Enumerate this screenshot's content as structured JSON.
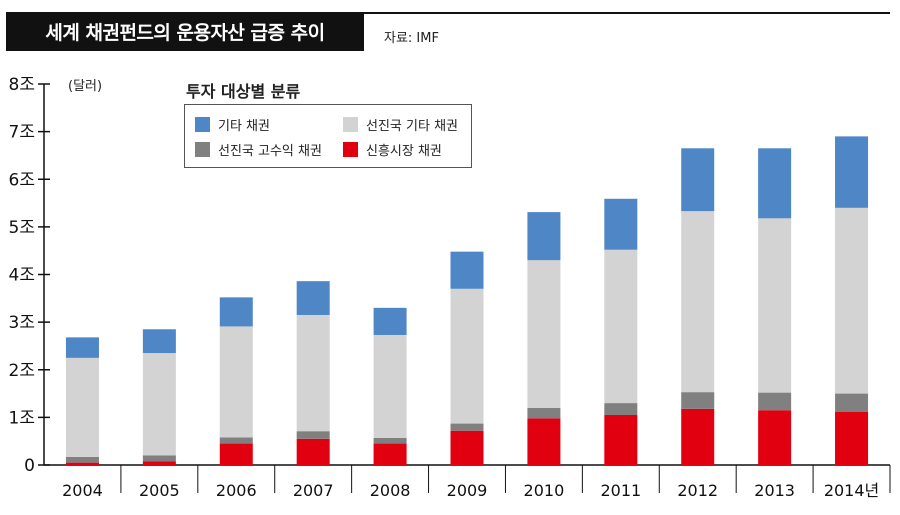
{
  "header": {
    "title": "세계 채권펀드의 운용자산 급증 추이",
    "source": "자료: IMF"
  },
  "colors": {
    "emerging": "#e00010",
    "high_yield": "#808080",
    "dev_other": "#d3d3d3",
    "other": "#4f86c6"
  },
  "chart_data": {
    "type": "bar",
    "stacked": true,
    "title": "세계 채권펀드의 운용자산 급증 추이",
    "unit_label": "(달러)",
    "legend_title": "투자 대상별 분류",
    "legend_placement": "top-left",
    "categories": [
      "2004",
      "2005",
      "2006",
      "2007",
      "2008",
      "2009",
      "2010",
      "2011",
      "2012",
      "2013",
      "2014년"
    ],
    "ylim": [
      0,
      8
    ],
    "yticks": [
      "0",
      "1조",
      "2조",
      "3조",
      "4조",
      "5조",
      "6조",
      "7조",
      "8조"
    ],
    "grid": false,
    "series": [
      {
        "name": "신흥시장 채권",
        "values": [
          0.05,
          0.08,
          0.45,
          0.55,
          0.45,
          0.72,
          0.98,
          1.05,
          1.18,
          1.15,
          1.12
        ]
      },
      {
        "name": "선진국 고수익 채권",
        "values": [
          0.12,
          0.12,
          0.13,
          0.16,
          0.12,
          0.15,
          0.22,
          0.25,
          0.35,
          0.37,
          0.38
        ]
      },
      {
        "name": "선진국 기타 채권",
        "values": [
          2.08,
          2.15,
          2.33,
          2.44,
          2.16,
          2.83,
          3.1,
          3.22,
          3.8,
          3.66,
          3.9
        ]
      },
      {
        "name": "기타 채권",
        "values": [
          0.43,
          0.5,
          0.61,
          0.71,
          0.57,
          0.78,
          1.01,
          1.07,
          1.32,
          1.47,
          1.5
        ]
      }
    ]
  }
}
